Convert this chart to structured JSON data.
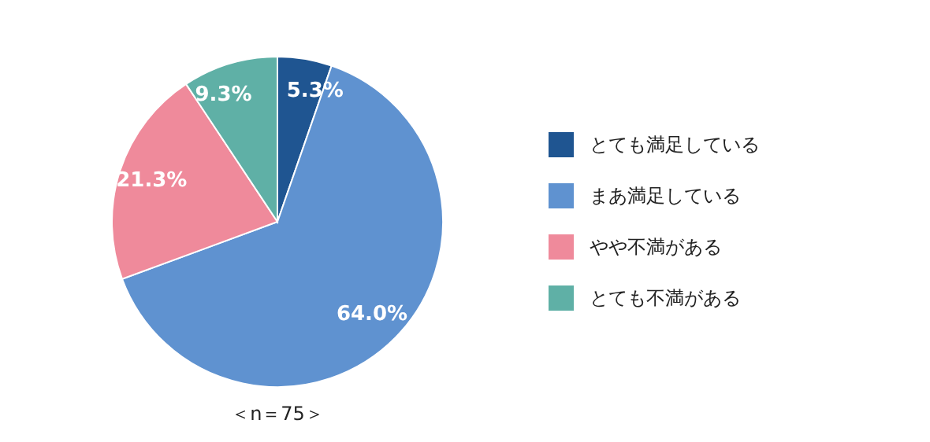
{
  "chart_data": {
    "type": "pie",
    "categories": [
      "とても満足している",
      "まあ満足している",
      "やや不満がある",
      "とても不満がある"
    ],
    "values": [
      5.3,
      64.0,
      21.3,
      9.3
    ],
    "colors": [
      "#1f5591",
      "#5f92d0",
      "#ef8a9b",
      "#5fb0a6"
    ],
    "value_labels": [
      "5.3%",
      "64.0%",
      "21.3%",
      "9.3%"
    ],
    "legend": "right",
    "annotations": [
      "＜n＝75＞"
    ]
  }
}
